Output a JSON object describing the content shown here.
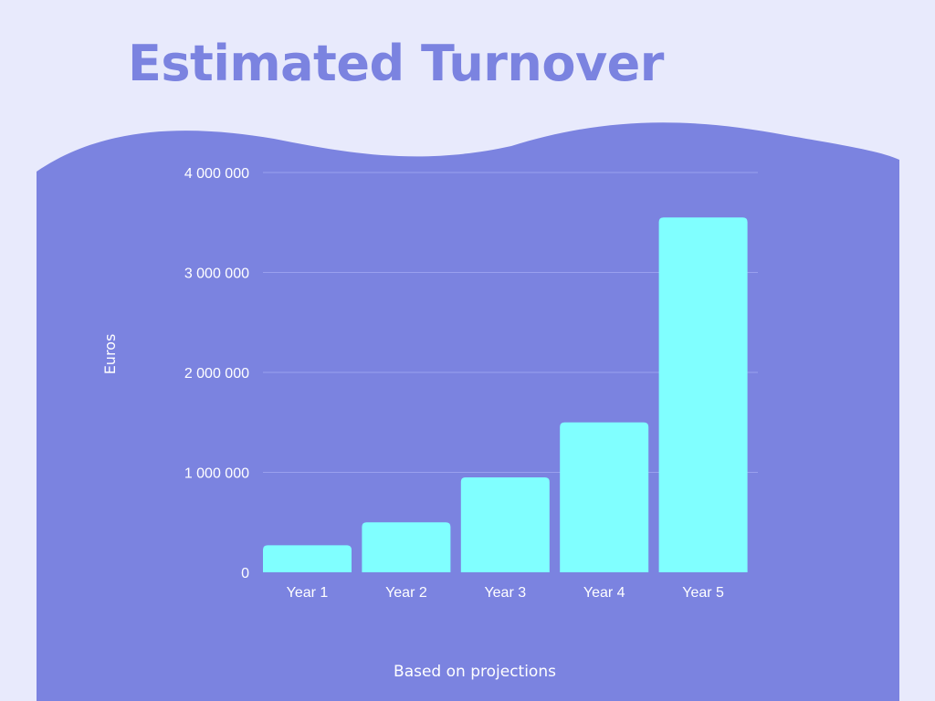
{
  "title": "Estimated Turnover",
  "caption": "Based on projections",
  "colors": {
    "background": "#e8eafc",
    "panel": "#7b83e0",
    "bar": "#80ffff",
    "title": "#7b83e0",
    "text": "#ffffff"
  },
  "chart_data": {
    "type": "bar",
    "title": "",
    "categories": [
      "Year 1",
      "Year 2",
      "Year 3",
      "Year 4",
      "Year 5"
    ],
    "values": [
      270000,
      500000,
      950000,
      1500000,
      3550000
    ],
    "ylabel": "Euros",
    "xlabel": "",
    "ylim": [
      0,
      4000000
    ],
    "yticks": [
      0,
      1000000,
      2000000,
      3000000,
      4000000
    ],
    "ytick_labels": [
      "0",
      "1 000 000",
      "2 000 000",
      "3 000 000",
      "4 000 000"
    ],
    "grid": true,
    "legend": "none"
  }
}
